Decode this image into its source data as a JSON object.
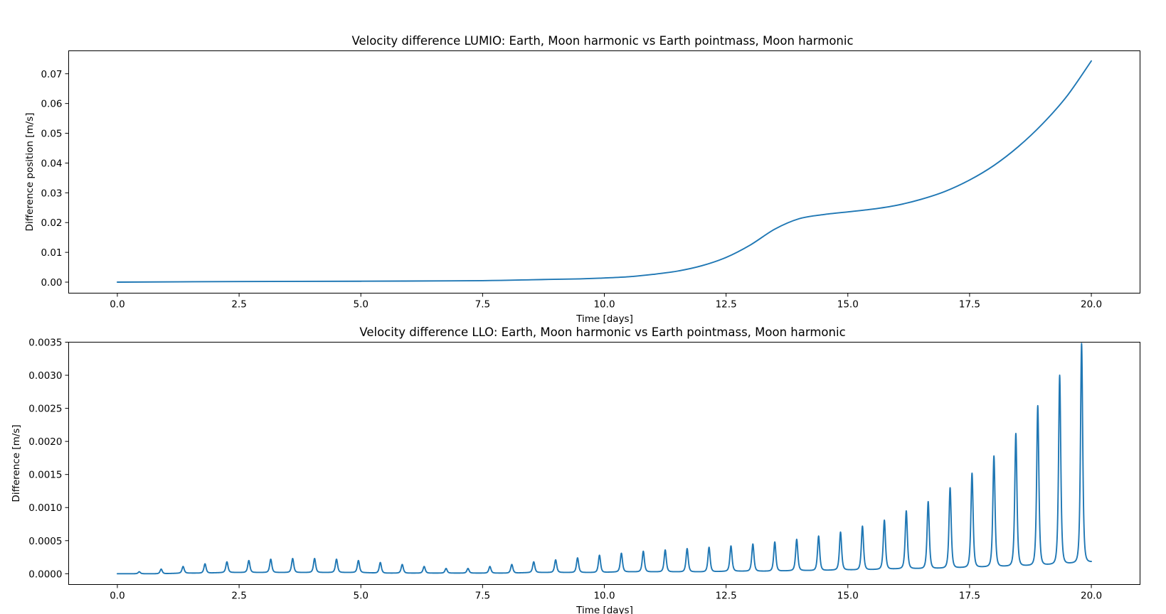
{
  "chart_data": [
    {
      "type": "line",
      "title": "Velocity difference LUMIO: Earth, Moon harmonic vs Earth pointmass, Moon harmonic",
      "xlabel": "Time [days]",
      "ylabel": "Difference position  [m/s]",
      "xlim": [
        -1.0,
        21.0
      ],
      "ylim": [
        -0.0037,
        0.0777
      ],
      "xticks": [
        0.0,
        2.5,
        5.0,
        7.5,
        10.0,
        12.5,
        15.0,
        17.5,
        20.0
      ],
      "xtick_labels": [
        "0.0",
        "2.5",
        "5.0",
        "7.5",
        "10.0",
        "12.5",
        "15.0",
        "17.5",
        "20.0"
      ],
      "yticks": [
        0.0,
        0.01,
        0.02,
        0.03,
        0.04,
        0.05,
        0.06,
        0.07
      ],
      "ytick_labels": [
        "0.00",
        "0.01",
        "0.02",
        "0.03",
        "0.04",
        "0.05",
        "0.06",
        "0.07"
      ],
      "grid": false,
      "series": [
        {
          "color": "#1f77b4",
          "x": [
            0,
            2.5,
            5,
            7.5,
            8.5,
            9.5,
            10,
            10.5,
            11,
            11.5,
            12,
            12.5,
            13,
            13.5,
            14,
            14.5,
            15,
            15.5,
            16,
            16.5,
            17,
            17.5,
            18,
            18.5,
            19,
            19.5,
            20
          ],
          "y": [
            0.0,
            0.0002,
            0.0003,
            0.0005,
            0.0008,
            0.0011,
            0.0014,
            0.0018,
            0.0026,
            0.0037,
            0.0055,
            0.0083,
            0.0125,
            0.0178,
            0.0213,
            0.0227,
            0.0236,
            0.0245,
            0.0258,
            0.0278,
            0.0305,
            0.0343,
            0.0392,
            0.0455,
            0.0532,
            0.0625,
            0.0743
          ]
        }
      ]
    },
    {
      "type": "line",
      "title": "Velocity difference LLO: Earth, Moon harmonic vs Earth pointmass, Moon harmonic",
      "xlabel": "Time [days]",
      "ylabel": "Difference [m/s]",
      "xlim": [
        -1.0,
        21.0
      ],
      "ylim": [
        -0.000163,
        0.0035
      ],
      "xticks": [
        0.0,
        2.5,
        5.0,
        7.5,
        10.0,
        12.5,
        15.0,
        17.5,
        20.0
      ],
      "xtick_labels": [
        "0.0",
        "2.5",
        "5.0",
        "7.5",
        "10.0",
        "12.5",
        "15.0",
        "17.5",
        "20.0"
      ],
      "yticks": [
        0.0,
        0.0005,
        0.001,
        0.0015,
        0.002,
        0.0025,
        0.003,
        0.0035
      ],
      "ytick_labels": [
        "0.0000",
        "0.0005",
        "0.0010",
        "0.0015",
        "0.0020",
        "0.0025",
        "0.0030",
        "0.0035"
      ],
      "grid": false,
      "series": [
        {
          "color": "#1f77b4",
          "period_days": 0.45,
          "first_peak_day": 0.45,
          "end_day": 20.0,
          "peak_t": [
            0.45,
            0.9,
            1.35,
            1.8,
            2.25,
            2.7,
            3.15,
            3.6,
            4.05,
            4.5,
            4.95,
            5.4,
            5.85,
            6.3,
            6.75,
            7.2,
            7.65,
            8.1,
            8.55,
            9.0,
            9.45,
            9.9,
            10.35,
            10.8,
            11.25,
            11.7,
            12.15,
            12.6,
            13.05,
            13.5,
            13.95,
            14.4,
            14.85,
            15.3,
            15.75,
            16.2,
            16.65,
            17.1,
            17.55,
            18.0,
            18.45,
            18.9,
            19.35,
            19.8
          ],
          "peak_values": [
            3e-05,
            7e-05,
            0.00011,
            0.00015,
            0.00018,
            0.0002,
            0.00022,
            0.00023,
            0.00023,
            0.00022,
            0.0002,
            0.00017,
            0.00014,
            0.00011,
            8e-05,
            8e-05,
            0.00011,
            0.00014,
            0.00018,
            0.00021,
            0.00024,
            0.00028,
            0.00031,
            0.00034,
            0.00036,
            0.00038,
            0.0004,
            0.00042,
            0.00045,
            0.00048,
            0.00052,
            0.00057,
            0.00063,
            0.00072,
            0.00081,
            0.00095,
            0.00109,
            0.0013,
            0.00152,
            0.00178,
            0.00212,
            0.00254,
            0.003,
            0.00348
          ],
          "baseline_values": [
            0.0,
            0.0,
            1e-05,
            1e-05,
            2e-05,
            2e-05,
            2e-05,
            2e-05,
            2e-05,
            2e-05,
            2e-05,
            1e-05,
            1e-05,
            1e-05,
            1e-05,
            1e-05,
            1e-05,
            1e-05,
            2e-05,
            2e-05,
            2e-05,
            2e-05,
            3e-05,
            3e-05,
            3e-05,
            3e-05,
            3e-05,
            4e-05,
            4e-05,
            4e-05,
            5e-05,
            5e-05,
            6e-05,
            6e-05,
            7e-05,
            8e-05,
            8e-05,
            9e-05,
            0.0001,
            0.00011,
            0.00012,
            0.00013,
            0.00015,
            0.00017
          ],
          "end_value": 0.00018
        }
      ]
    }
  ]
}
